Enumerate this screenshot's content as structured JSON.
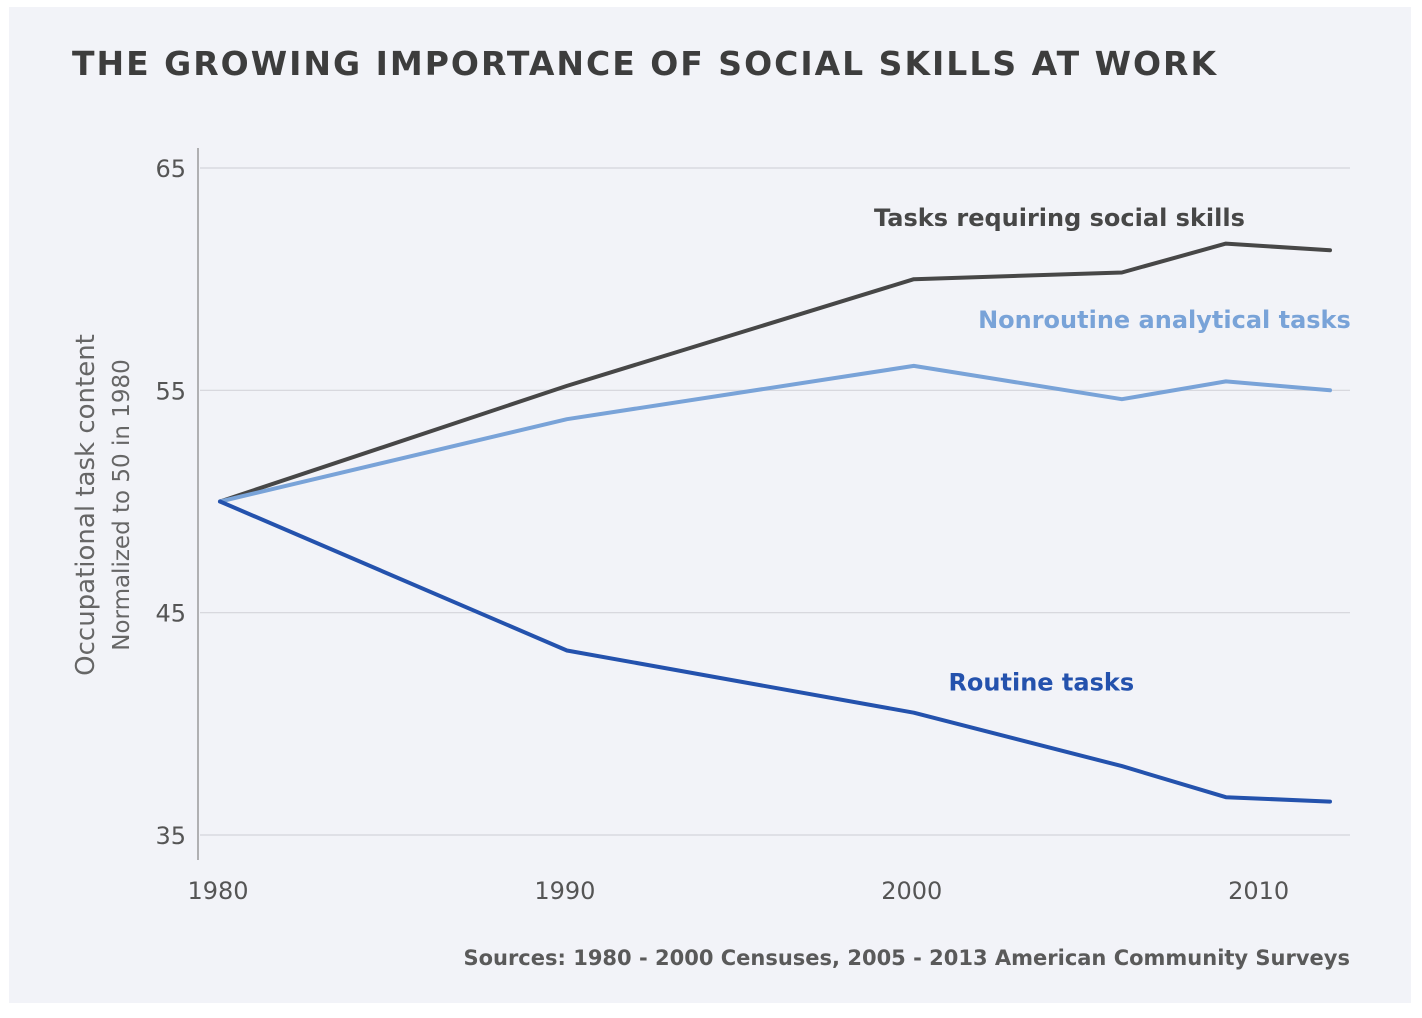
{
  "chart_data": {
    "type": "line",
    "title": "THE GROWING IMPORTANCE OF SOCIAL SKILLS AT WORK",
    "ylabel": "Occupational task content",
    "ylabel_sub": "Normalized to 50 in 1980",
    "source": "Sources: 1980 - 2000 Censuses, 2005 - 2013 American Community Surveys",
    "xlim": [
      1980,
      2012
    ],
    "ylim": [
      35,
      65
    ],
    "x_ticks": [
      1980,
      1990,
      2000,
      2010
    ],
    "y_ticks": [
      35,
      45,
      55,
      65
    ],
    "grid": "horizontal",
    "series": [
      {
        "name": "Tasks requiring social skills",
        "color": "#474747",
        "points": [
          [
            1980,
            50
          ],
          [
            1990,
            55.2
          ],
          [
            2000,
            60
          ],
          [
            2006,
            60.3
          ],
          [
            2009,
            61.6
          ],
          [
            2012,
            61.3
          ]
        ]
      },
      {
        "name": "Nonroutine analytical tasks",
        "color": "#79a3d8",
        "points": [
          [
            1980,
            50
          ],
          [
            1990,
            53.7
          ],
          [
            2000,
            56.1
          ],
          [
            2006,
            54.6
          ],
          [
            2009,
            55.4
          ],
          [
            2012,
            55
          ]
        ]
      },
      {
        "name": "Routine tasks",
        "color": "#2452ad",
        "points": [
          [
            1980,
            50
          ],
          [
            1990,
            43.3
          ],
          [
            2000,
            40.5
          ],
          [
            2006,
            38.1
          ],
          [
            2009,
            36.7
          ],
          [
            2012,
            36.5
          ]
        ]
      }
    ]
  }
}
